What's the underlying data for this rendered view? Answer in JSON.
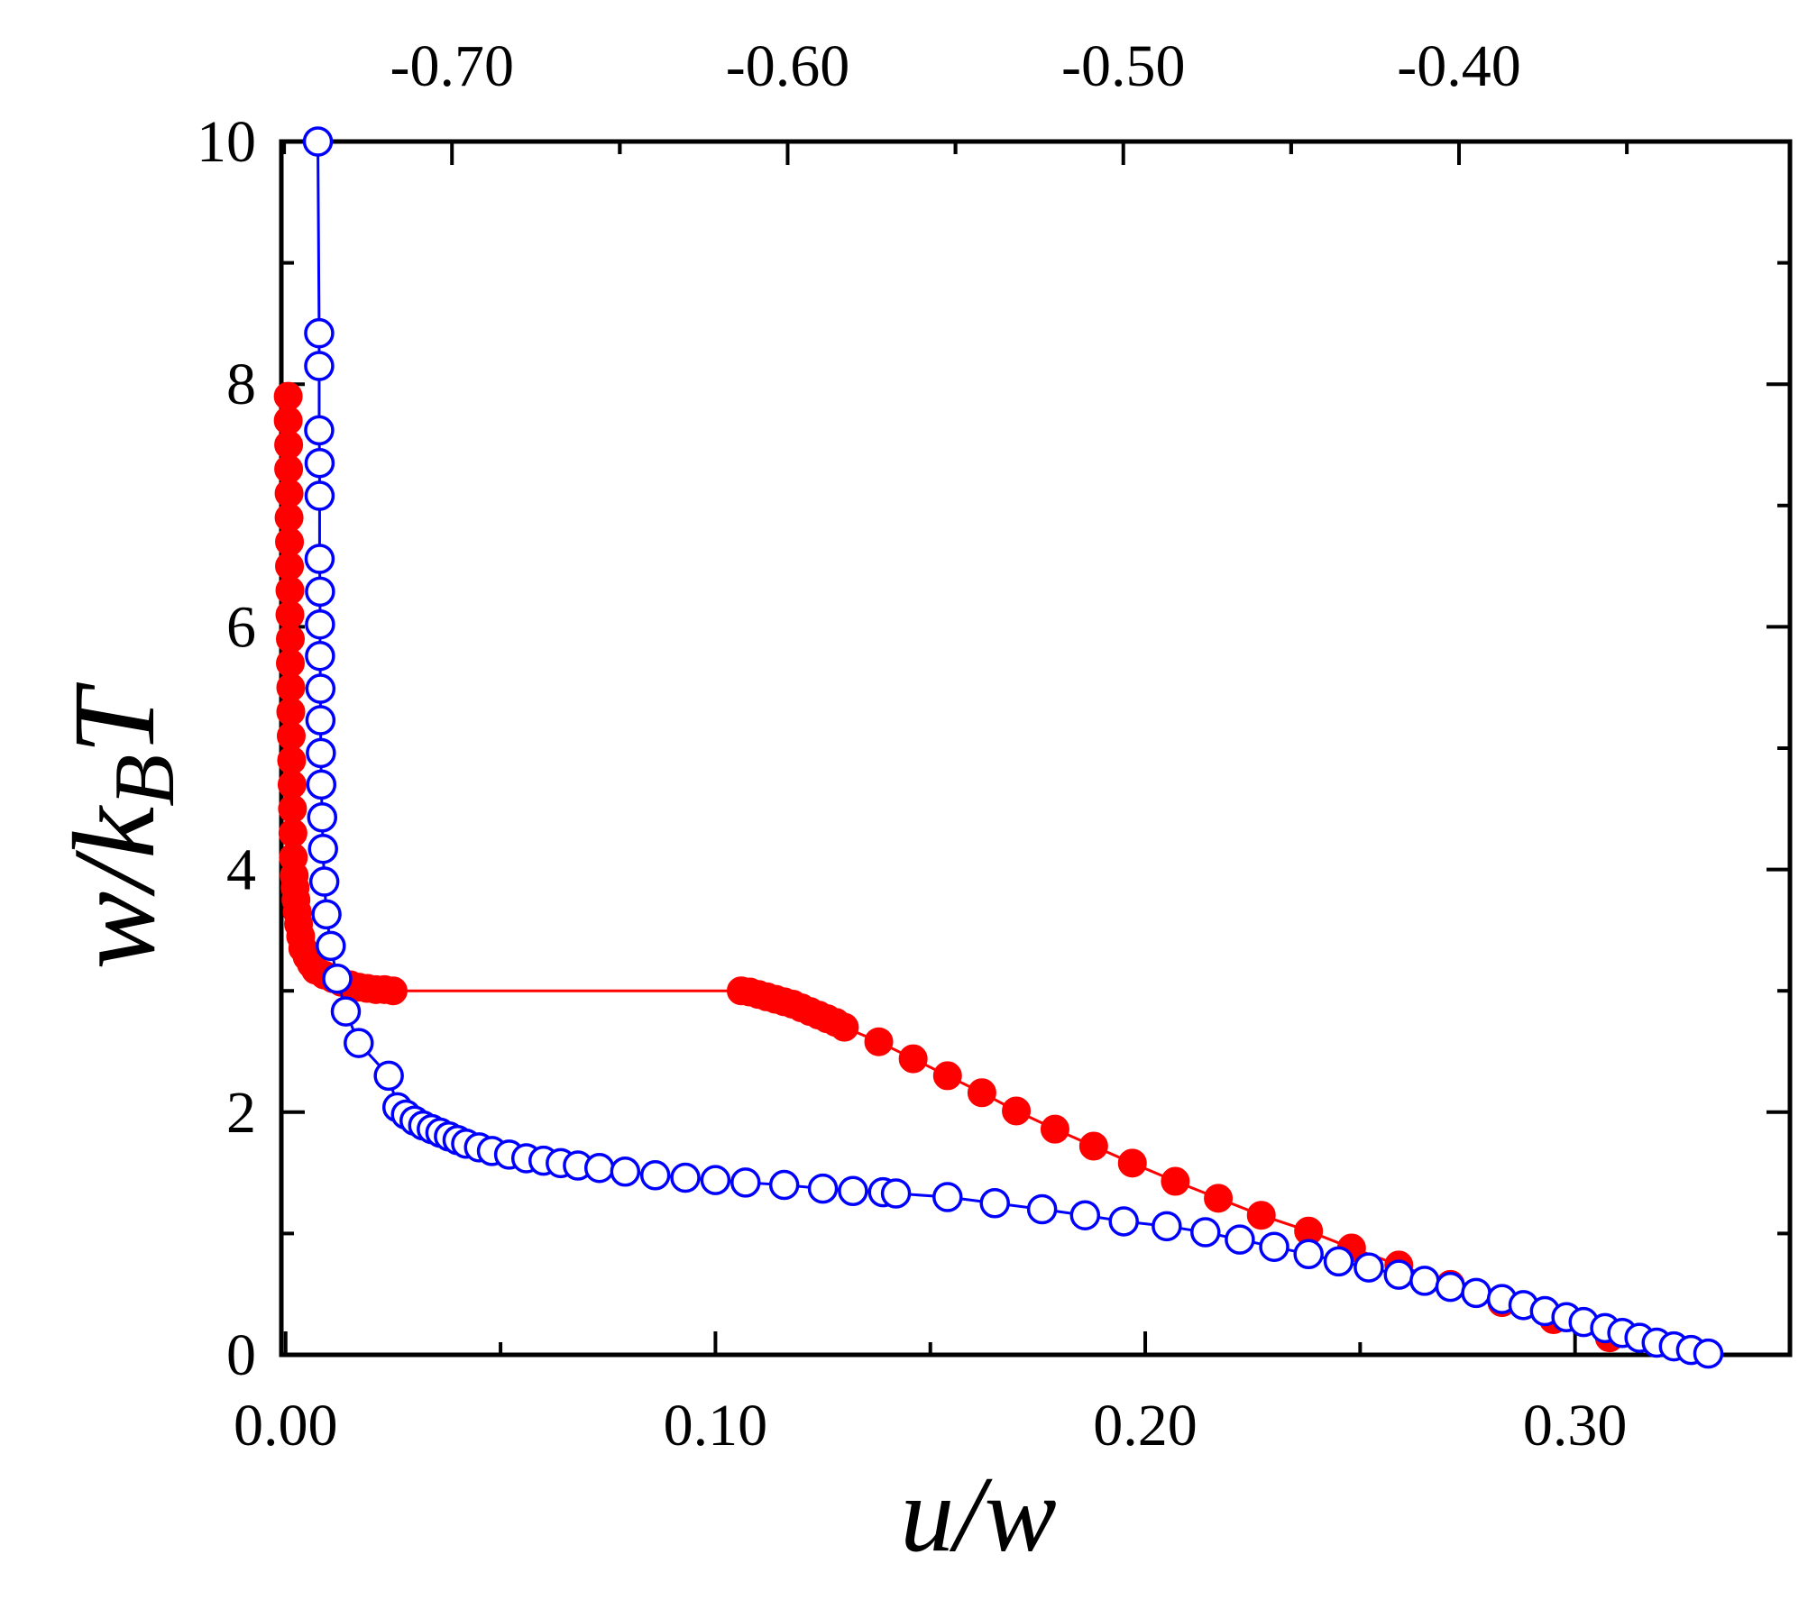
{
  "chart_data": {
    "type": "scatter",
    "title": "",
    "xlabel": "u/w",
    "ylabel": "w/k_B T",
    "xlim": [
      -0.001,
      0.35
    ],
    "ylim": [
      0,
      10
    ],
    "x_ticks": [
      "0.00",
      "0.10",
      "0.20",
      "0.30"
    ],
    "y_ticks": [
      "0",
      "2",
      "4",
      "6",
      "8",
      "10"
    ],
    "top_axis": {
      "ticks": [
        "-0.70",
        "-0.60",
        "-0.50",
        "-0.40"
      ],
      "tick_positions_bottom_units": [
        0.0387,
        0.1168,
        0.1949,
        0.273
      ]
    },
    "grid": false,
    "legend": "none",
    "series": [
      {
        "name": "filled",
        "marker": "filled-circle",
        "color": "#ff0000",
        "x": [
          0.0006,
          0.0006,
          0.0007,
          0.0007,
          0.0008,
          0.0008,
          0.0009,
          0.0009,
          0.001,
          0.001,
          0.0011,
          0.0011,
          0.0012,
          0.0012,
          0.0013,
          0.0014,
          0.0015,
          0.0016,
          0.0017,
          0.0018,
          0.002,
          0.0022,
          0.0024,
          0.0027,
          0.003,
          0.0035,
          0.004,
          0.005,
          0.006,
          0.007,
          0.009,
          0.011,
          0.013,
          0.015,
          0.017,
          0.019,
          0.021,
          0.023,
          0.025,
          0.106,
          0.108,
          0.11,
          0.112,
          0.114,
          0.116,
          0.118,
          0.12,
          0.122,
          0.124,
          0.126,
          0.128,
          0.13,
          0.138,
          0.146,
          0.154,
          0.162,
          0.17,
          0.179,
          0.188,
          0.197,
          0.207,
          0.217,
          0.227,
          0.238,
          0.248,
          0.259,
          0.271,
          0.283,
          0.295,
          0.308
        ],
        "y": [
          7.9,
          7.7,
          7.5,
          7.3,
          7.1,
          6.9,
          6.7,
          6.5,
          6.3,
          6.1,
          5.9,
          5.7,
          5.5,
          5.3,
          5.1,
          4.9,
          4.7,
          4.5,
          4.3,
          4.1,
          3.95,
          3.85,
          3.75,
          3.65,
          3.55,
          3.45,
          3.35,
          3.28,
          3.22,
          3.17,
          3.13,
          3.1,
          3.07,
          3.05,
          3.03,
          3.02,
          3.01,
          3.01,
          3.0,
          3.0,
          2.99,
          2.97,
          2.95,
          2.93,
          2.91,
          2.89,
          2.86,
          2.83,
          2.8,
          2.77,
          2.74,
          2.7,
          2.58,
          2.44,
          2.3,
          2.16,
          2.01,
          1.86,
          1.72,
          1.58,
          1.43,
          1.29,
          1.15,
          1.02,
          0.88,
          0.74,
          0.58,
          0.43,
          0.29,
          0.14
        ]
      },
      {
        "name": "open",
        "marker": "open-circle",
        "color": "#0000ff",
        "x": [
          0.0075,
          0.0078,
          0.0078,
          0.0078,
          0.0079,
          0.0079,
          0.0079,
          0.008,
          0.008,
          0.008,
          0.0081,
          0.0081,
          0.0082,
          0.0083,
          0.0085,
          0.0087,
          0.009,
          0.0095,
          0.0105,
          0.012,
          0.014,
          0.017,
          0.024,
          0.026,
          0.028,
          0.03,
          0.032,
          0.034,
          0.036,
          0.038,
          0.04,
          0.042,
          0.045,
          0.048,
          0.052,
          0.056,
          0.06,
          0.064,
          0.068,
          0.073,
          0.079,
          0.086,
          0.093,
          0.1,
          0.107,
          0.116,
          0.125,
          0.132,
          0.139,
          0.142,
          0.154,
          0.165,
          0.176,
          0.186,
          0.195,
          0.205,
          0.214,
          0.222,
          0.23,
          0.238,
          0.245,
          0.252,
          0.259,
          0.265,
          0.271,
          0.277,
          0.283,
          0.288,
          0.293,
          0.298,
          0.302,
          0.307,
          0.311,
          0.315,
          0.319,
          0.323,
          0.327,
          0.331
        ],
        "y": [
          10.0,
          8.42,
          8.15,
          7.62,
          7.35,
          7.08,
          6.56,
          6.29,
          6.02,
          5.76,
          5.49,
          5.23,
          4.96,
          4.7,
          4.43,
          4.17,
          3.9,
          3.63,
          3.37,
          3.1,
          2.83,
          2.57,
          2.3,
          2.04,
          1.98,
          1.93,
          1.89,
          1.86,
          1.83,
          1.8,
          1.77,
          1.74,
          1.71,
          1.68,
          1.65,
          1.62,
          1.6,
          1.58,
          1.56,
          1.54,
          1.51,
          1.48,
          1.46,
          1.44,
          1.42,
          1.4,
          1.37,
          1.35,
          1.34,
          1.33,
          1.3,
          1.25,
          1.2,
          1.15,
          1.1,
          1.06,
          1.01,
          0.95,
          0.89,
          0.83,
          0.77,
          0.72,
          0.66,
          0.61,
          0.56,
          0.51,
          0.46,
          0.41,
          0.36,
          0.31,
          0.27,
          0.22,
          0.18,
          0.14,
          0.1,
          0.07,
          0.04,
          0.01
        ]
      }
    ]
  }
}
